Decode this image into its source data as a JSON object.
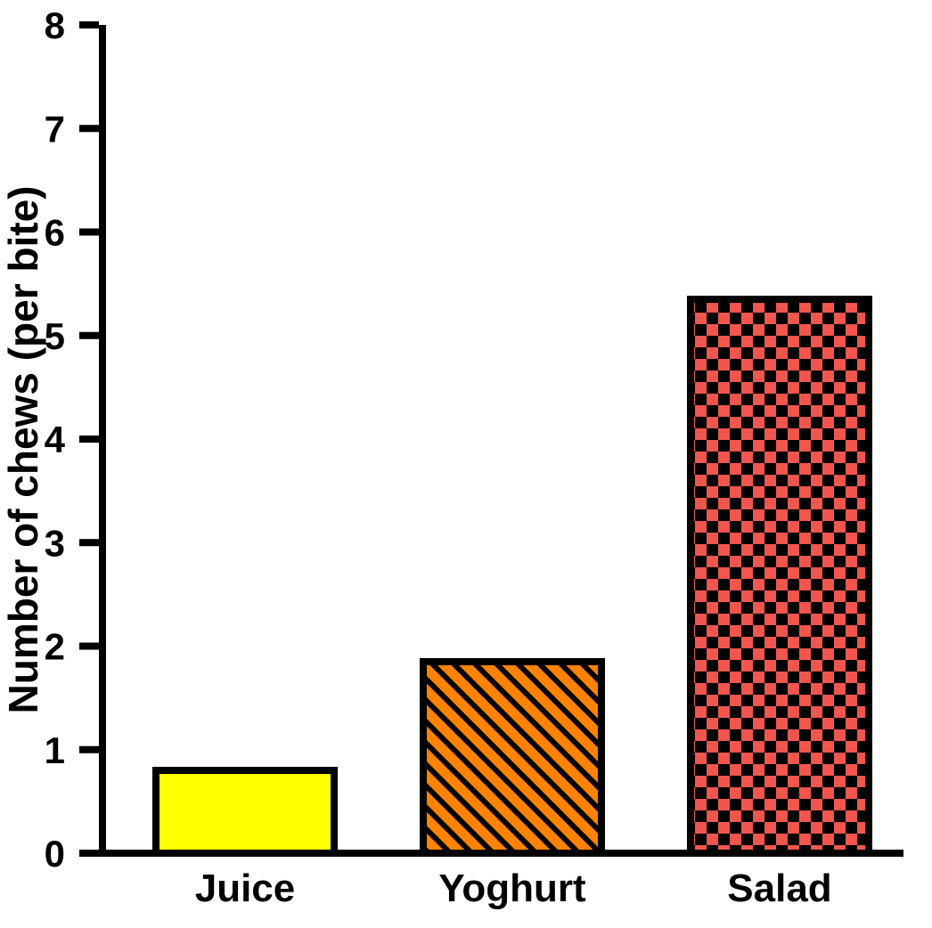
{
  "chart_data": {
    "type": "bar",
    "title": "",
    "xlabel": "",
    "ylabel": "Number of chews (per bite)",
    "categories": [
      "Juice",
      "Yoghurt",
      "Salad"
    ],
    "values": [
      0.8,
      1.85,
      5.35
    ],
    "ylim": [
      0,
      8
    ],
    "yticks": [
      0,
      1,
      2,
      3,
      4,
      5,
      6,
      7,
      8
    ],
    "grid": false,
    "legend_position": "none",
    "background_color": "#FFFFFF",
    "axis_color": "#000000",
    "bar_styles": [
      {
        "category": "Juice",
        "fill": "#FFFF00",
        "pattern": "solid",
        "pattern_color": "#000000"
      },
      {
        "category": "Yoghurt",
        "fill": "#FF8200",
        "pattern": "diagonal-hatch",
        "pattern_color": "#000000"
      },
      {
        "category": "Salad",
        "fill": "#F0564E",
        "pattern": "checkerboard",
        "pattern_color": "#000000"
      }
    ]
  }
}
